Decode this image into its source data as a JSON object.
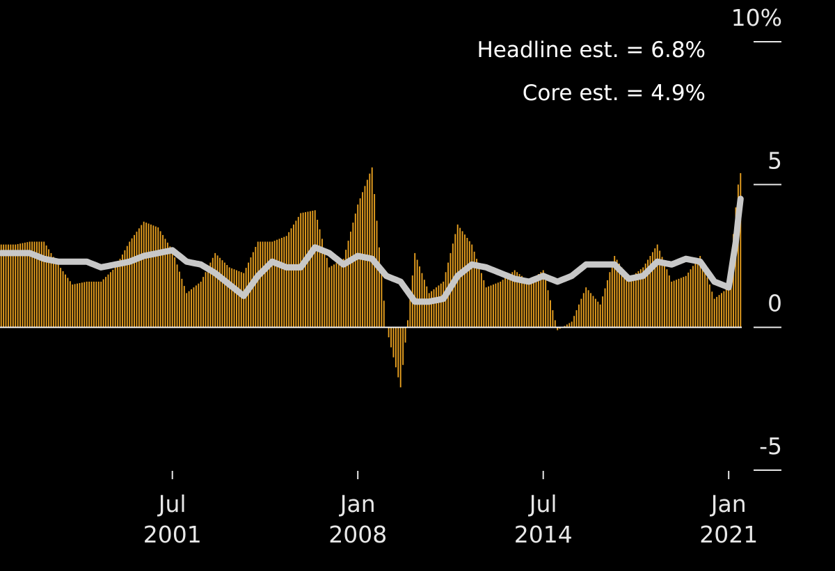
{
  "chart_data": {
    "type": "bar",
    "title": "",
    "xlabel": "",
    "ylabel": "",
    "ylim": [
      -5,
      10
    ],
    "y_ticks": [
      {
        "value": 10,
        "label": "10%"
      },
      {
        "value": 5,
        "label": "5"
      },
      {
        "value": 0,
        "label": "0"
      },
      {
        "value": -5,
        "label": "-5"
      }
    ],
    "x_range": [
      "1995-07",
      "2021-06"
    ],
    "x_ticks": [
      {
        "date": "2001-07",
        "month": "Jul",
        "year": "2001"
      },
      {
        "date": "2008-01",
        "month": "Jan",
        "year": "2008"
      },
      {
        "date": "2014-07",
        "month": "Jul",
        "year": "2014"
      },
      {
        "date": "2021-01",
        "month": "Jan",
        "year": "2021"
      }
    ],
    "annotations": [
      {
        "text": "Headline est. = 6.8%"
      },
      {
        "text": "Core est. = 4.9%"
      }
    ],
    "colors": {
      "background": "#000000",
      "headline_bars": "#e8a020",
      "core_line": "#c8c8c8",
      "axis": "#e8e8e8"
    },
    "series": [
      {
        "type": "bar",
        "points": [
          [
            "1995-07",
            2.9
          ],
          [
            "1996-01",
            2.9
          ],
          [
            "1996-07",
            3.0
          ],
          [
            "1997-01",
            3.0
          ],
          [
            "1997-07",
            2.2
          ],
          [
            "1998-01",
            1.5
          ],
          [
            "1998-07",
            1.6
          ],
          [
            "1999-01",
            1.6
          ],
          [
            "1999-07",
            2.1
          ],
          [
            "2000-01",
            3.0
          ],
          [
            "2000-07",
            3.7
          ],
          [
            "2001-01",
            3.5
          ],
          [
            "2001-07",
            2.7
          ],
          [
            "2002-01",
            1.2
          ],
          [
            "2002-07",
            1.6
          ],
          [
            "2003-01",
            2.6
          ],
          [
            "2003-07",
            2.1
          ],
          [
            "2004-01",
            1.9
          ],
          [
            "2004-07",
            3.0
          ],
          [
            "2005-01",
            3.0
          ],
          [
            "2005-07",
            3.2
          ],
          [
            "2006-01",
            4.0
          ],
          [
            "2006-07",
            4.1
          ],
          [
            "2007-01",
            2.1
          ],
          [
            "2007-07",
            2.4
          ],
          [
            "2008-01",
            4.3
          ],
          [
            "2008-07",
            5.6
          ],
          [
            "2009-01",
            0.0
          ],
          [
            "2009-07",
            -2.1
          ],
          [
            "2010-01",
            2.6
          ],
          [
            "2010-07",
            1.2
          ],
          [
            "2011-01",
            1.6
          ],
          [
            "2011-07",
            3.6
          ],
          [
            "2012-01",
            2.9
          ],
          [
            "2012-07",
            1.4
          ],
          [
            "2013-01",
            1.6
          ],
          [
            "2013-07",
            2.0
          ],
          [
            "2014-01",
            1.6
          ],
          [
            "2014-07",
            2.0
          ],
          [
            "2015-01",
            -0.1
          ],
          [
            "2015-07",
            0.2
          ],
          [
            "2016-01",
            1.4
          ],
          [
            "2016-07",
            0.8
          ],
          [
            "2017-01",
            2.5
          ],
          [
            "2017-07",
            1.7
          ],
          [
            "2018-01",
            2.1
          ],
          [
            "2018-07",
            2.9
          ],
          [
            "2019-01",
            1.6
          ],
          [
            "2019-07",
            1.8
          ],
          [
            "2020-01",
            2.5
          ],
          [
            "2020-07",
            1.0
          ],
          [
            "2021-01",
            1.4
          ],
          [
            "2021-04",
            4.2
          ],
          [
            "2021-05",
            5.0
          ],
          [
            "2021-06",
            5.4
          ]
        ]
      },
      {
        "type": "line",
        "points": [
          [
            "1995-07",
            2.6
          ],
          [
            "1996-01",
            2.6
          ],
          [
            "1996-07",
            2.6
          ],
          [
            "1997-01",
            2.4
          ],
          [
            "1997-07",
            2.3
          ],
          [
            "1998-01",
            2.3
          ],
          [
            "1998-07",
            2.3
          ],
          [
            "1999-01",
            2.1
          ],
          [
            "1999-07",
            2.2
          ],
          [
            "2000-01",
            2.3
          ],
          [
            "2000-07",
            2.5
          ],
          [
            "2001-01",
            2.6
          ],
          [
            "2001-07",
            2.7
          ],
          [
            "2002-01",
            2.3
          ],
          [
            "2002-07",
            2.2
          ],
          [
            "2003-01",
            1.9
          ],
          [
            "2003-07",
            1.5
          ],
          [
            "2004-01",
            1.1
          ],
          [
            "2004-07",
            1.8
          ],
          [
            "2005-01",
            2.3
          ],
          [
            "2005-07",
            2.1
          ],
          [
            "2006-01",
            2.1
          ],
          [
            "2006-07",
            2.8
          ],
          [
            "2007-01",
            2.6
          ],
          [
            "2007-07",
            2.2
          ],
          [
            "2008-01",
            2.5
          ],
          [
            "2008-07",
            2.4
          ],
          [
            "2009-01",
            1.8
          ],
          [
            "2009-07",
            1.6
          ],
          [
            "2010-01",
            0.9
          ],
          [
            "2010-07",
            0.9
          ],
          [
            "2011-01",
            1.0
          ],
          [
            "2011-07",
            1.8
          ],
          [
            "2012-01",
            2.2
          ],
          [
            "2012-07",
            2.1
          ],
          [
            "2013-01",
            1.9
          ],
          [
            "2013-07",
            1.7
          ],
          [
            "2014-01",
            1.6
          ],
          [
            "2014-07",
            1.8
          ],
          [
            "2015-01",
            1.6
          ],
          [
            "2015-07",
            1.8
          ],
          [
            "2016-01",
            2.2
          ],
          [
            "2016-07",
            2.2
          ],
          [
            "2017-01",
            2.2
          ],
          [
            "2017-07",
            1.7
          ],
          [
            "2018-01",
            1.8
          ],
          [
            "2018-07",
            2.3
          ],
          [
            "2019-01",
            2.2
          ],
          [
            "2019-07",
            2.4
          ],
          [
            "2020-01",
            2.3
          ],
          [
            "2020-07",
            1.6
          ],
          [
            "2021-01",
            1.4
          ],
          [
            "2021-04",
            3.0
          ],
          [
            "2021-05",
            3.8
          ],
          [
            "2021-06",
            4.5
          ]
        ]
      }
    ]
  }
}
